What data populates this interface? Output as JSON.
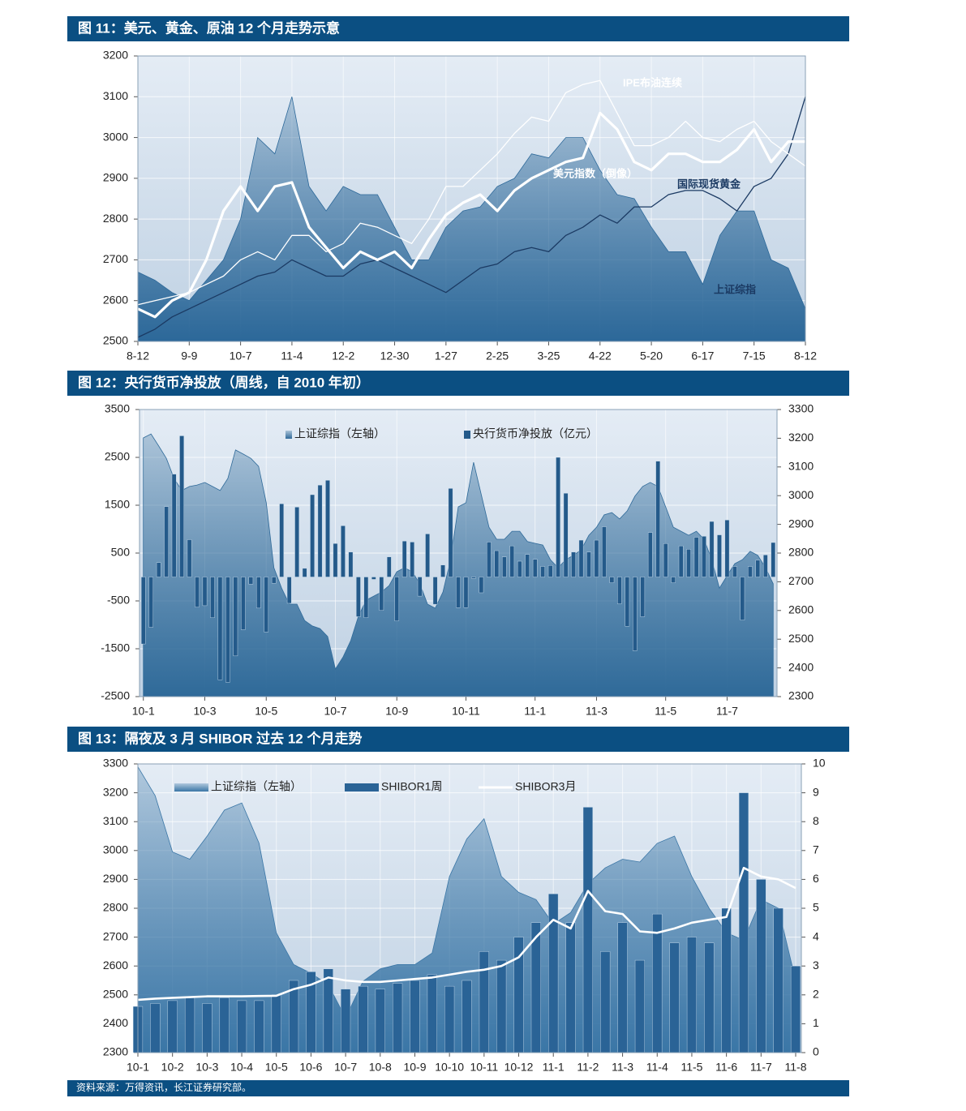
{
  "chart_data": [
    {
      "type": "line",
      "title": "图 11：美元、黄金、原油 12 个月走势示意",
      "categories": [
        "8-12",
        null,
        null,
        "9-9",
        null,
        null,
        "10-7",
        null,
        null,
        "11-4",
        null,
        null,
        "12-2",
        null,
        null,
        "12-30",
        null,
        null,
        "1-27",
        null,
        null,
        "2-25",
        null,
        null,
        "3-25",
        null,
        null,
        "4-22",
        null,
        null,
        "5-20",
        null,
        null,
        "6-17",
        null,
        null,
        "7-15",
        null,
        null,
        "8-12"
      ],
      "ylim": [
        2500,
        3200
      ],
      "yticks": [
        2500,
        2600,
        2700,
        2800,
        2900,
        3000,
        3100,
        3200
      ],
      "grid": true,
      "series": [
        {
          "name": "上证综指",
          "type": "area",
          "color": "#2c6899",
          "values": [
            2670,
            2650,
            2620,
            2600,
            2650,
            2700,
            2800,
            3000,
            2960,
            3100,
            2880,
            2820,
            2880,
            2860,
            2860,
            2780,
            2700,
            2700,
            2780,
            2820,
            2830,
            2880,
            2900,
            2960,
            2950,
            3000,
            3000,
            2920,
            2860,
            2850,
            2780,
            2720,
            2720,
            2640,
            2760,
            2820,
            2820,
            2700,
            2680,
            2580
          ]
        },
        {
          "name": "国际现货黄金",
          "type": "line",
          "color": "#1b3a63",
          "values": [
            2510,
            2530,
            2560,
            2580,
            2600,
            2620,
            2640,
            2660,
            2670,
            2700,
            2680,
            2660,
            2660,
            2690,
            2700,
            2680,
            2660,
            2640,
            2620,
            2650,
            2680,
            2690,
            2720,
            2730,
            2720,
            2760,
            2780,
            2810,
            2790,
            2830,
            2830,
            2860,
            2870,
            2870,
            2850,
            2820,
            2880,
            2900,
            2960,
            3100
          ]
        },
        {
          "name": "IPE布油连续",
          "type": "line",
          "color": "#ffffff",
          "values": [
            2590,
            2600,
            2610,
            2620,
            2640,
            2660,
            2700,
            2720,
            2700,
            2760,
            2760,
            2720,
            2740,
            2790,
            2780,
            2760,
            2740,
            2800,
            2880,
            2880,
            2920,
            2960,
            3010,
            3050,
            3040,
            3110,
            3130,
            3140,
            3060,
            2980,
            2980,
            3000,
            3040,
            3000,
            2990,
            3020,
            3040,
            2990,
            2960,
            2930
          ]
        },
        {
          "name": "美元指数（倒像）",
          "type": "line",
          "color": "#ffffff",
          "values": [
            2580,
            2560,
            2600,
            2620,
            2700,
            2820,
            2880,
            2820,
            2880,
            2890,
            2780,
            2730,
            2680,
            2720,
            2700,
            2720,
            2680,
            2750,
            2810,
            2840,
            2860,
            2820,
            2870,
            2900,
            2920,
            2940,
            2950,
            3060,
            3020,
            2940,
            2920,
            2960,
            2960,
            2940,
            2940,
            2970,
            3020,
            2940,
            2990,
            2990
          ]
        }
      ]
    },
    {
      "type": "bar",
      "title": "图 12：央行货币净投放（周线，自 2010 年初）",
      "categories": [
        "10-1",
        null,
        null,
        null,
        null,
        null,
        null,
        null,
        "10-3",
        null,
        null,
        null,
        null,
        null,
        null,
        null,
        "10-5",
        null,
        null,
        null,
        null,
        null,
        null,
        null,
        null,
        "10-7",
        null,
        null,
        null,
        null,
        null,
        null,
        null,
        "10-9",
        null,
        null,
        null,
        null,
        null,
        null,
        null,
        null,
        "10-11",
        null,
        null,
        null,
        null,
        null,
        null,
        null,
        null,
        "11-1",
        null,
        null,
        null,
        null,
        null,
        null,
        null,
        "11-3",
        null,
        null,
        null,
        null,
        null,
        null,
        null,
        null,
        "11-5",
        null,
        null,
        null,
        null,
        null,
        null,
        null,
        "11-7",
        null,
        null,
        null,
        null,
        null,
        null
      ],
      "ylim": [
        -2500,
        3500
      ],
      "yticks": [
        -2500,
        -1500,
        -500,
        500,
        1500,
        2500,
        3500
      ],
      "y2lim": [
        2300,
        3300
      ],
      "y2ticks": [
        2300,
        2400,
        2500,
        2600,
        2700,
        2800,
        2900,
        3000,
        3100,
        3200,
        3300
      ],
      "grid": true,
      "series": [
        {
          "name": "上证综指（左轴）",
          "type": "area",
          "axis": "y2",
          "color": "#2f6a99",
          "values": [
            3201,
            3215,
            3173,
            3130,
            3060,
            3018,
            3032,
            3037,
            3046,
            3032,
            3018,
            3060,
            3159,
            3145,
            3130,
            3102,
            2975,
            2749,
            2678,
            2622,
            2622,
            2565,
            2546,
            2537,
            2509,
            2396,
            2438,
            2495,
            2580,
            2636,
            2650,
            2664,
            2687,
            2735,
            2749,
            2735,
            2693,
            2622,
            2608,
            2664,
            2777,
            2961,
            2975,
            3116,
            3003,
            2890,
            2848,
            2848,
            2876,
            2876,
            2840,
            2834,
            2828,
            2777,
            2749,
            2777,
            2792,
            2811,
            2862,
            2890,
            2933,
            2941,
            2919,
            2947,
            2998,
            3032,
            3046,
            3032,
            2961,
            2890,
            2876,
            2862,
            2876,
            2848,
            2777,
            2678,
            2721,
            2763,
            2777,
            2806,
            2792,
            2749,
            2693
          ]
        },
        {
          "name": "央行货币净投放（亿元）",
          "type": "bar",
          "color": "#245a8a",
          "values": [
            -1400,
            -1050,
            300,
            1470,
            2150,
            2950,
            780,
            -630,
            -600,
            -850,
            -2150,
            -2200,
            -1650,
            -1100,
            -150,
            -650,
            -1150,
            -130,
            1530,
            -550,
            1460,
            180,
            1720,
            1920,
            2020,
            700,
            1070,
            520,
            -830,
            -850,
            -50,
            -700,
            420,
            -920,
            750,
            730,
            -400,
            900,
            -570,
            250,
            1850,
            -640,
            -640,
            -30,
            -330,
            730,
            550,
            420,
            650,
            330,
            470,
            370,
            220,
            240,
            2500,
            1750,
            520,
            770,
            520,
            770,
            1050,
            -120,
            -560,
            -1030,
            -1540,
            -830,
            930,
            2420,
            700,
            -120,
            650,
            580,
            830,
            850,
            1160,
            880,
            1190,
            220,
            -900,
            220,
            350,
            460,
            720
          ]
        }
      ]
    },
    {
      "type": "bar",
      "title": "图 13：隔夜及 3 月 SHIBOR 过去 12 个月走势",
      "categories": [
        "10-1",
        null,
        "10-2",
        null,
        "10-3",
        null,
        "10-4",
        null,
        "10-5",
        null,
        "10-6",
        null,
        "10-7",
        null,
        "10-8",
        null,
        "10-9",
        null,
        "10-10",
        null,
        "10-11",
        null,
        "10-12",
        null,
        "11-1",
        null,
        "11-2",
        null,
        "11-3",
        null,
        "11-4",
        null,
        "11-5",
        null,
        "11-6",
        null,
        "11-7",
        null,
        "11-8"
      ],
      "ylim": [
        2300,
        3300
      ],
      "yticks": [
        2300,
        2400,
        2500,
        2600,
        2700,
        2800,
        2900,
        3000,
        3100,
        3200,
        3300
      ],
      "y2lim": [
        0,
        10
      ],
      "y2ticks": [
        0,
        1,
        2,
        3,
        4,
        5,
        6,
        7,
        8,
        9,
        10
      ],
      "grid": true,
      "series": [
        {
          "name": "上证综指（左轴）",
          "type": "area",
          "color": "#3a76a6",
          "values": [
            3290,
            3190,
            2995,
            2970,
            3050,
            3140,
            3165,
            3025,
            2715,
            2605,
            2575,
            2535,
            2420,
            2547,
            2590,
            2605,
            2605,
            2645,
            2910,
            3040,
            3110,
            2910,
            2855,
            2830,
            2745,
            2785,
            2885,
            2940,
            2970,
            2960,
            3025,
            3050,
            2910,
            2800,
            2715,
            2690,
            2830,
            2800,
            2550
          ]
        },
        {
          "name": "SHIBOR1周",
          "type": "bar",
          "axis": "y2",
          "color": "#2a6396",
          "values": [
            1.6,
            1.7,
            1.8,
            1.9,
            1.7,
            1.9,
            1.8,
            1.8,
            2.0,
            2.5,
            2.8,
            2.9,
            2.2,
            2.3,
            2.2,
            2.4,
            2.5,
            2.7,
            2.3,
            2.5,
            3.5,
            3.2,
            4.0,
            4.5,
            5.5,
            4.5,
            8.5,
            3.5,
            4.5,
            3.2,
            4.8,
            3.8,
            4.0,
            3.8,
            5.0,
            9.0,
            6.0,
            5.0,
            3.0
          ]
        },
        {
          "name": "SHIBOR3月",
          "type": "line",
          "axis": "y2",
          "color": "#ffffff",
          "values": [
            1.83,
            1.87,
            1.9,
            1.92,
            1.95,
            1.95,
            1.95,
            1.96,
            1.97,
            2.2,
            2.35,
            2.6,
            2.5,
            2.45,
            2.45,
            2.5,
            2.55,
            2.6,
            2.7,
            2.8,
            2.87,
            3.0,
            3.3,
            4.0,
            4.6,
            4.3,
            5.6,
            4.9,
            4.8,
            4.2,
            4.15,
            4.3,
            4.5,
            4.6,
            4.7,
            6.4,
            6.1,
            6.0,
            5.7
          ]
        }
      ]
    }
  ],
  "source": "资料来源：万得资讯，长江证券研究部。"
}
